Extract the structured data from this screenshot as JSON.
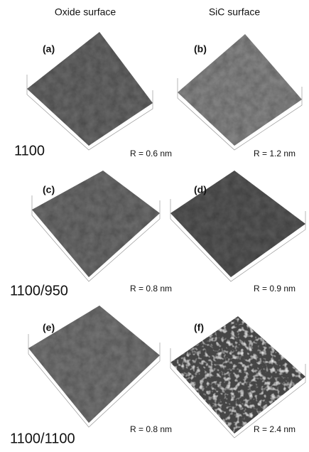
{
  "columns": [
    "Oxide surface",
    "SiC surface"
  ],
  "rows": [
    "1100",
    "1100/950",
    "1100/1100"
  ],
  "panels": [
    {
      "label": "(a)",
      "roughness": "R = 0.6 nm"
    },
    {
      "label": "(b)",
      "roughness": "R = 1.2 nm"
    },
    {
      "label": "(c)",
      "roughness": "R = 0.8 nm"
    },
    {
      "label": "(d)",
      "roughness": "R = 0.9 nm"
    },
    {
      "label": "(e)",
      "roughness": "R = 0.8 nm"
    },
    {
      "label": "(f)",
      "roughness": "R = 2.4 nm"
    }
  ]
}
